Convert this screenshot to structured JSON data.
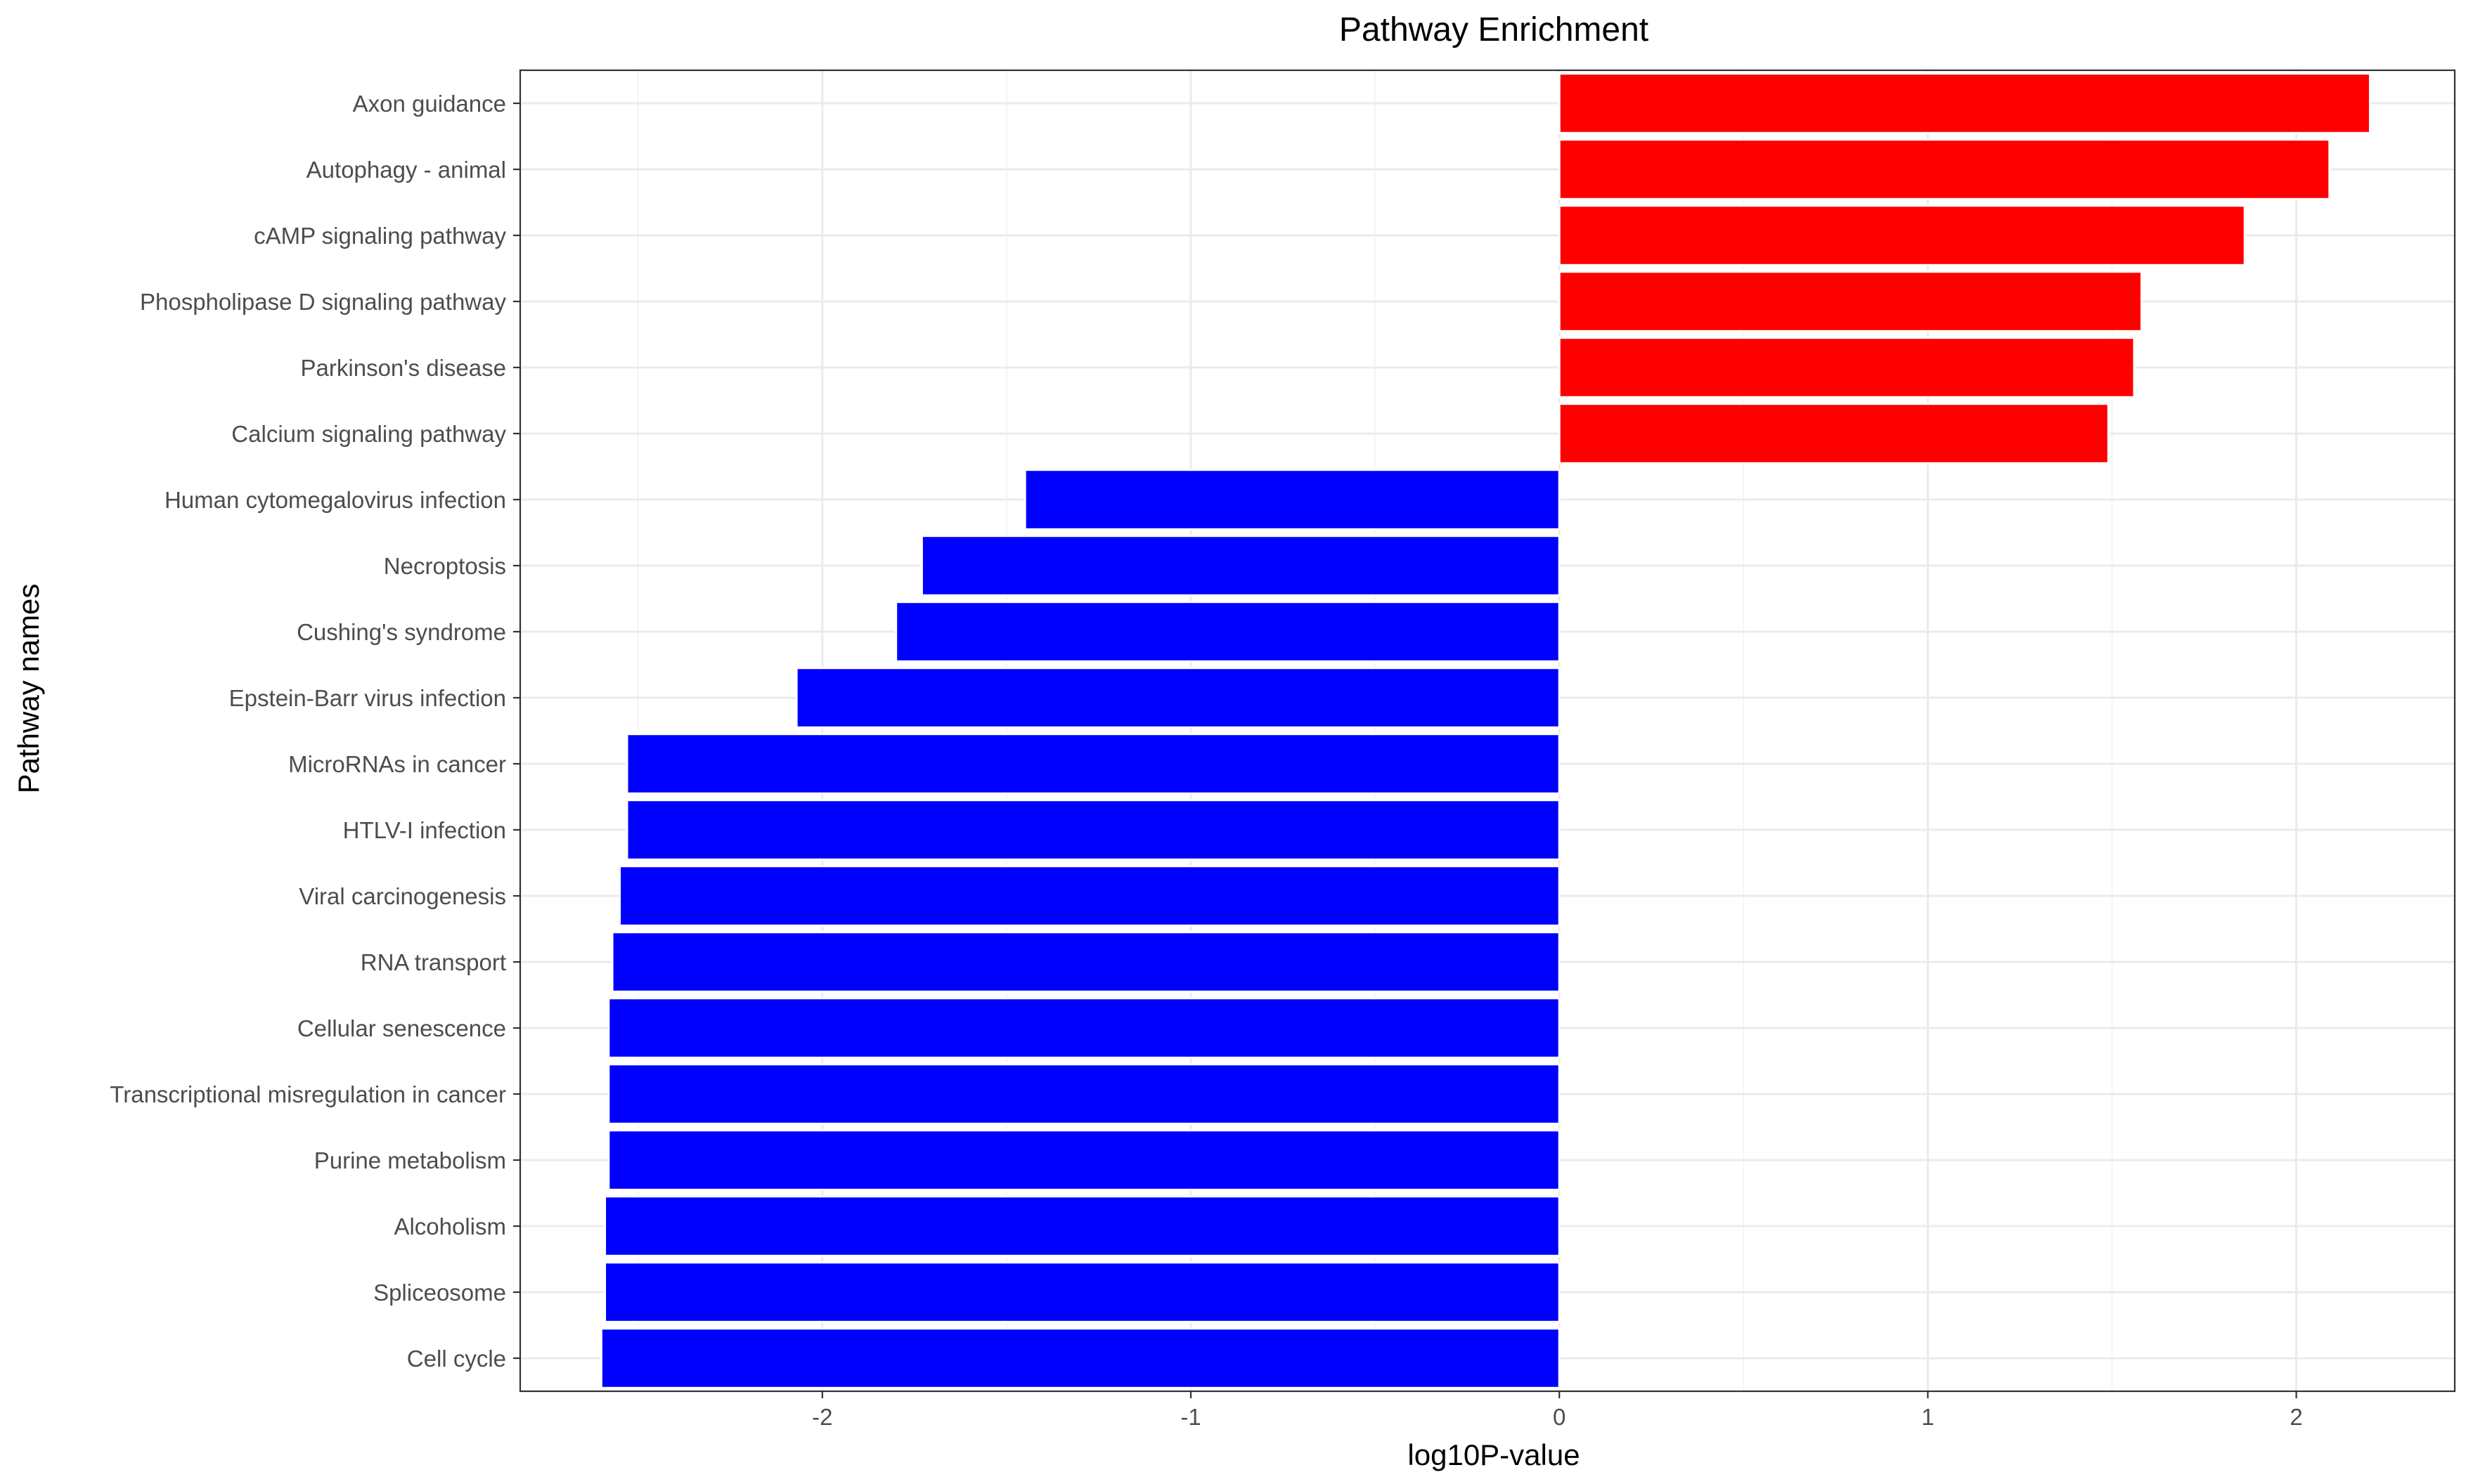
{
  "chart_data": {
    "type": "bar",
    "orientation": "horizontal",
    "title": "Pathway Enrichment",
    "xlabel": "log10P-value",
    "ylabel": "Pathway names",
    "xlim": [
      -2.82,
      2.43
    ],
    "x_ticks": [
      -2,
      -1,
      0,
      1,
      2
    ],
    "grid": true,
    "legend": "none",
    "colors": {
      "positive": "#FF0000",
      "negative": "#0000FF",
      "grid_major": "#EBEBEB",
      "grid_minor": "#F4F4F4"
    },
    "categories": [
      "Axon guidance",
      "Autophagy - animal",
      "cAMP signaling pathway",
      "Phospholipase D signaling pathway",
      "Parkinson's disease",
      "Calcium signaling pathway",
      "Human cytomegalovirus infection",
      "Necroptosis",
      "Cushing's syndrome",
      "Epstein-Barr virus infection",
      "MicroRNAs in cancer",
      "HTLV-I infection",
      "Viral carcinogenesis",
      "RNA transport",
      "Cellular senescence",
      "Transcriptional misregulation in cancer",
      "Purine metabolism",
      "Alcoholism",
      "Spliceosome",
      "Cell cycle"
    ],
    "values": [
      2.2,
      2.09,
      1.86,
      1.58,
      1.56,
      1.49,
      -1.45,
      -1.73,
      -1.8,
      -2.07,
      -2.53,
      -2.53,
      -2.55,
      -2.57,
      -2.58,
      -2.58,
      -2.58,
      -2.59,
      -2.59,
      -2.6
    ]
  }
}
